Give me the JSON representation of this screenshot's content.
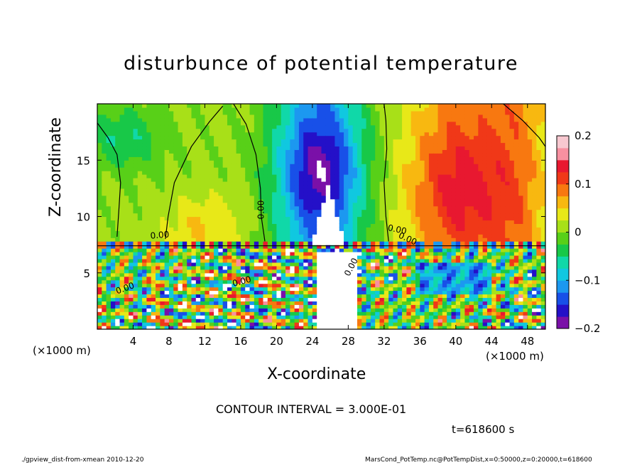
{
  "chart_data": {
    "type": "heatmap",
    "title": "disturbunce of potential temperature",
    "xlabel": "X-coordinate",
    "ylabel": "Z-coordinate",
    "x_unit_left": "(×1000 m)",
    "x_unit_right": "(×1000 m)",
    "xlim": [
      0,
      50
    ],
    "ylim": [
      0,
      20
    ],
    "x_ticks": [
      4,
      8,
      12,
      16,
      20,
      24,
      28,
      32,
      36,
      40,
      44,
      48
    ],
    "y_ticks": [
      5,
      10,
      15
    ],
    "colorbar": {
      "range": [
        -0.2,
        0.2
      ],
      "tick_values": [
        0.2,
        0.1,
        0,
        -0.1,
        -0.2
      ],
      "tick_labels": [
        "0.2",
        "0.1",
        "0",
        "−0.1",
        "−0.2"
      ],
      "colors": [
        "#7a10a8",
        "#2410c8",
        "#1850e8",
        "#1c98f0",
        "#10c8e0",
        "#10d8a8",
        "#18c848",
        "#58d018",
        "#a8e018",
        "#e8e818",
        "#f8b810",
        "#f87810",
        "#f03818",
        "#e81830",
        "#f890a0"
      ]
    },
    "contour_labels": [
      "0.00",
      "0.00",
      "0.00",
      "0.00",
      "0.00",
      "0.00",
      "0.00"
    ],
    "contour_interval_text": "CONTOUR INTERVAL = 3.000E-01",
    "time_text": "t=618600 s",
    "footer_left": "./gpview_dist-from-xmean  2010-12-20",
    "footer_right": "MarsCond_PotTemp.nc@PotTempDist,x=0:50000,z=0:20000,t=618600"
  }
}
